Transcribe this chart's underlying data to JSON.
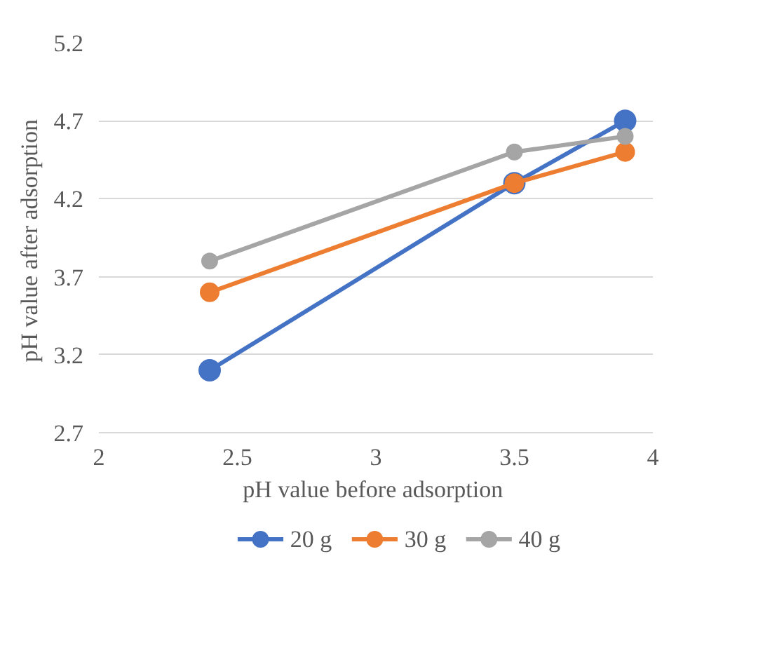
{
  "chart_data": {
    "type": "line",
    "xlabel": "pH value  before adsorption",
    "ylabel": "pH value  after adsorption",
    "x": [
      2.4,
      3.5,
      3.9
    ],
    "series": [
      {
        "name": "20 g",
        "color": "#4472c4",
        "values": [
          3.1,
          4.3,
          4.7
        ]
      },
      {
        "name": "30 g",
        "color": "#ed7d31",
        "values": [
          3.6,
          4.3,
          4.5
        ]
      },
      {
        "name": "40 g",
        "color": "#a5a5a5",
        "values": [
          3.8,
          4.5,
          4.6
        ]
      }
    ],
    "xlim": [
      2,
      4
    ],
    "xticks": [
      2,
      2.5,
      3,
      3.5,
      4
    ],
    "ylim": [
      2.7,
      5.2
    ],
    "yticks": [
      2.7,
      3.2,
      3.7,
      4.2,
      4.7,
      5.2
    ],
    "grid": "y",
    "legend": "bottom",
    "marker": "circle",
    "line_style": "solid"
  }
}
